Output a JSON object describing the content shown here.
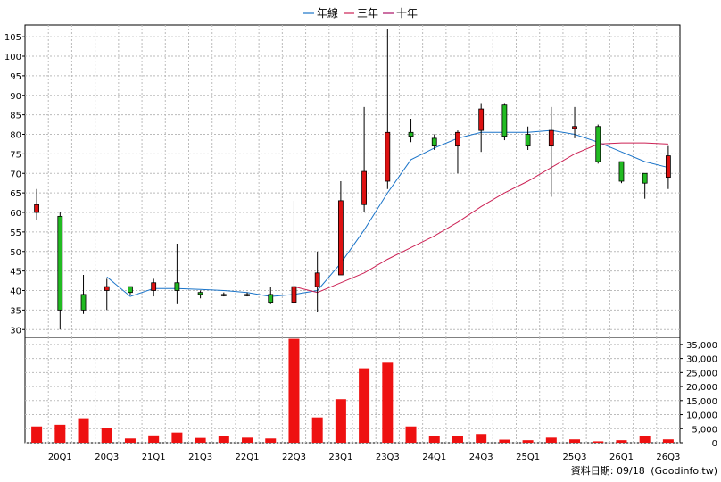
{
  "legend": [
    {
      "name": "年線",
      "color": "#1a74c9"
    },
    {
      "name": "三年",
      "color": "#cc2255"
    },
    {
      "name": "十年",
      "color": "#aa1166"
    }
  ],
  "source": {
    "date_label": "資料日期: 09/18",
    "site_label": "(Goodinfo.tw)"
  },
  "chart_data": [
    {
      "type": "candlestick",
      "title": "",
      "ylim": [
        28,
        108
      ],
      "yticks": [
        30,
        35,
        40,
        45,
        50,
        55,
        60,
        65,
        70,
        75,
        80,
        85,
        90,
        95,
        100,
        105
      ],
      "x_ticks": [
        "20Q1",
        "20Q3",
        "21Q1",
        "21Q3",
        "22Q1",
        "22Q3",
        "23Q1",
        "23Q3",
        "24Q1",
        "24Q3",
        "25Q1",
        "25Q3",
        "26Q1",
        "26Q3"
      ],
      "grid": true,
      "legend_position": "top-center",
      "up_color": "#dd1111",
      "down_color": "#22bb22",
      "candles": [
        {
          "open": 60,
          "close": 62,
          "high": 66,
          "low": 58
        },
        {
          "open": 59,
          "close": 35,
          "high": 60,
          "low": 30
        },
        {
          "open": 39,
          "close": 35,
          "high": 44,
          "low": 34
        },
        {
          "open": 40,
          "close": 41,
          "high": 43,
          "low": 35
        },
        {
          "open": 41,
          "close": 39.5,
          "high": 41,
          "low": 39
        },
        {
          "open": 40,
          "close": 42,
          "high": 43,
          "low": 38.5
        },
        {
          "open": 42,
          "close": 40,
          "high": 52,
          "low": 36.5
        },
        {
          "open": 39.5,
          "close": 39,
          "high": 40,
          "low": 38
        },
        {
          "open": 39,
          "close": 39,
          "high": 39.5,
          "low": 38.5
        },
        {
          "open": 39,
          "close": 39,
          "high": 39.5,
          "low": 38.5
        },
        {
          "open": 39,
          "close": 37,
          "high": 41,
          "low": 36.5
        },
        {
          "open": 37,
          "close": 41,
          "high": 63,
          "low": 36.5
        },
        {
          "open": 41,
          "close": 44.5,
          "high": 50,
          "low": 34.5
        },
        {
          "open": 44,
          "close": 63,
          "high": 68,
          "low": 44
        },
        {
          "open": 62,
          "close": 70.5,
          "high": 87,
          "low": 60
        },
        {
          "open": 68,
          "close": 80.5,
          "high": 107,
          "low": 66
        },
        {
          "open": 80.5,
          "close": 79.5,
          "high": 84,
          "low": 78
        },
        {
          "open": 79,
          "close": 77,
          "high": 80,
          "low": 76
        },
        {
          "open": 77,
          "close": 80.5,
          "high": 81,
          "low": 70
        },
        {
          "open": 81,
          "close": 86.5,
          "high": 88,
          "low": 75.5
        },
        {
          "open": 87.5,
          "close": 79.5,
          "high": 88,
          "low": 78.5
        },
        {
          "open": 80,
          "close": 77,
          "high": 82,
          "low": 76
        },
        {
          "open": 77,
          "close": 81,
          "high": 87,
          "low": 64
        },
        {
          "open": 81.5,
          "close": 82,
          "high": 87,
          "low": 79
        },
        {
          "open": 82,
          "close": 73,
          "high": 82.5,
          "low": 72.5
        },
        {
          "open": 73,
          "close": 68,
          "high": 73,
          "low": 67.5
        },
        {
          "open": 70,
          "close": 67.5,
          "high": 70,
          "low": 63.5
        },
        {
          "open": 69,
          "close": 74.5,
          "high": 77,
          "low": 66
        }
      ],
      "series": [
        {
          "name": "年線",
          "color": "#1a74c9",
          "values": [
            null,
            null,
            null,
            43.5,
            38.5,
            40.5,
            40.5,
            40.3,
            40,
            39.5,
            38.5,
            39,
            40,
            47,
            55.5,
            65,
            73.5,
            76.5,
            79,
            80.5,
            80.5,
            80.5,
            81,
            80,
            78,
            75.5,
            73,
            71.5
          ]
        },
        {
          "name": "三年",
          "color": "#cc2255",
          "values": [
            null,
            null,
            null,
            null,
            null,
            null,
            null,
            null,
            null,
            null,
            null,
            41,
            39.5,
            42,
            44.5,
            48,
            51,
            54,
            57.5,
            61.5,
            65,
            68,
            71.5,
            75,
            77.5,
            77.8,
            77.8,
            77.5
          ]
        }
      ]
    },
    {
      "type": "bar",
      "title": "",
      "ylim": [
        0,
        37500
      ],
      "yticks": [
        0,
        5000,
        10000,
        15000,
        20000,
        25000,
        30000,
        35000
      ],
      "ytick_labels": [
        "0",
        "5,000",
        "10,000",
        "15,000",
        "20,000",
        "25,000",
        "30,000",
        "35,000"
      ],
      "grid": true,
      "bar_color": "#ee1111",
      "values": [
        5800,
        6400,
        8700,
        5200,
        1500,
        2600,
        3600,
        1700,
        2300,
        1800,
        1500,
        37000,
        9000,
        15500,
        26500,
        28500,
        5800,
        2500,
        2400,
        3100,
        1100,
        900,
        1800,
        1200,
        500,
        900,
        2500,
        1200
      ]
    }
  ]
}
